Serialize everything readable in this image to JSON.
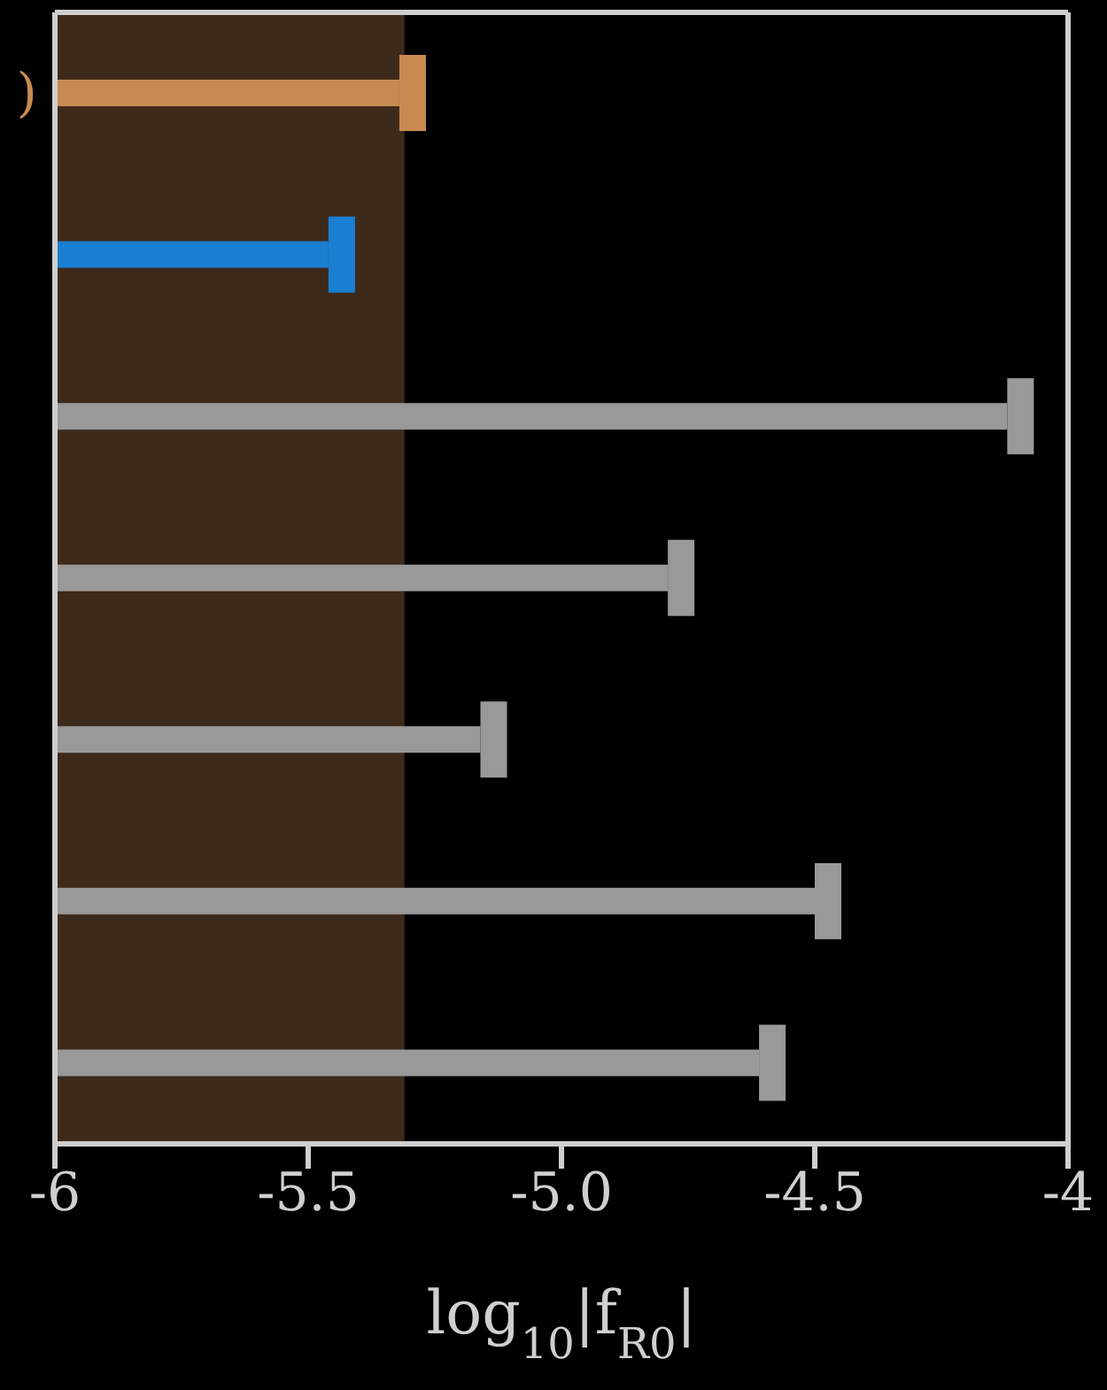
{
  "chart_data": {
    "type": "bar",
    "orientation": "horizontal",
    "categories": [
      ")",
      null,
      null,
      null,
      null,
      null,
      null
    ],
    "base": [
      -6,
      -6,
      -6,
      -6,
      -6,
      -6,
      -6
    ],
    "values": [
      0.68,
      0.54,
      1.88,
      1.21,
      0.84,
      1.5,
      1.39
    ],
    "colors": [
      "#c88a50",
      "#1a7fd1",
      "#999999",
      "#999999",
      "#999999",
      "#999999",
      "#999999"
    ],
    "xlim": [
      -6,
      -4
    ],
    "xticks": [
      -6,
      -5.5,
      {
        "value": -5,
        "label": "-5.0"
      },
      -4.5,
      -4
    ],
    "xlabel": "log$_{10}$|f$_{R0}$|",
    "bands": [
      {
        "axis": "x",
        "from": -6,
        "to": -5.31,
        "color": "#3e2a1b"
      }
    ]
  }
}
